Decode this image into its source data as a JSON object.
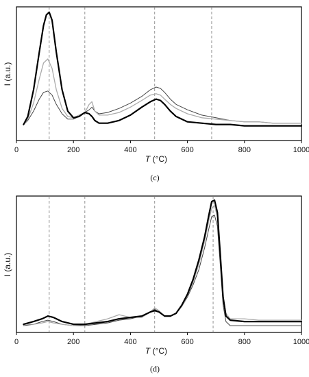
{
  "chart_data": [
    {
      "type": "line",
      "panel_label": "(c)",
      "xlabel_var": "T",
      "xlabel_unit": " (°C)",
      "ylabel": "I (a.u.)",
      "xlim": [
        0,
        1000
      ],
      "ylim": [
        0,
        1
      ],
      "xticks": [
        0,
        200,
        400,
        600,
        800,
        1000
      ],
      "tick_labels": [
        "0",
        "200",
        "400",
        "600",
        "800",
        "1000"
      ],
      "ref_lines": [
        115,
        240,
        485,
        685
      ],
      "series": [
        {
          "color": "#444444",
          "width": 1.0,
          "x": [
            25,
            40,
            60,
            80,
            95,
            110,
            125,
            140,
            160,
            180,
            200,
            220,
            240,
            255,
            265,
            275,
            290,
            320,
            360,
            400,
            440,
            470,
            490,
            505,
            520,
            540,
            560,
            600,
            650,
            700,
            750,
            800,
            850,
            900,
            950,
            1000
          ],
          "y": [
            0.12,
            0.15,
            0.22,
            0.31,
            0.36,
            0.37,
            0.34,
            0.27,
            0.2,
            0.16,
            0.16,
            0.18,
            0.21,
            0.23,
            0.25,
            0.22,
            0.2,
            0.21,
            0.24,
            0.28,
            0.33,
            0.38,
            0.4,
            0.39,
            0.36,
            0.31,
            0.27,
            0.23,
            0.19,
            0.17,
            0.15,
            0.14,
            0.14,
            0.13,
            0.13,
            0.13
          ]
        },
        {
          "color": "#aaaaaa",
          "width": 1.3,
          "x": [
            25,
            40,
            60,
            80,
            95,
            110,
            125,
            140,
            160,
            180,
            200,
            220,
            240,
            255,
            265,
            275,
            290,
            320,
            360,
            400,
            440,
            470,
            490,
            505,
            520,
            540,
            560,
            600,
            650,
            700,
            750,
            800,
            850,
            900,
            950,
            1000
          ],
          "y": [
            0.12,
            0.16,
            0.28,
            0.46,
            0.58,
            0.61,
            0.54,
            0.38,
            0.24,
            0.18,
            0.17,
            0.19,
            0.21,
            0.27,
            0.29,
            0.22,
            0.19,
            0.19,
            0.21,
            0.25,
            0.3,
            0.34,
            0.35,
            0.34,
            0.31,
            0.27,
            0.24,
            0.2,
            0.17,
            0.16,
            0.15,
            0.14,
            0.14,
            0.13,
            0.13,
            0.13
          ]
        },
        {
          "color": "#000000",
          "width": 2.2,
          "x": [
            25,
            40,
            60,
            80,
            95,
            105,
            115,
            125,
            140,
            160,
            180,
            200,
            220,
            240,
            255,
            265,
            275,
            290,
            320,
            360,
            400,
            440,
            470,
            490,
            505,
            520,
            540,
            560,
            600,
            650,
            700,
            750,
            800,
            850,
            900,
            950,
            1000
          ],
          "y": [
            0.12,
            0.18,
            0.38,
            0.66,
            0.86,
            0.94,
            0.96,
            0.9,
            0.66,
            0.38,
            0.22,
            0.17,
            0.18,
            0.21,
            0.2,
            0.18,
            0.15,
            0.13,
            0.13,
            0.15,
            0.19,
            0.25,
            0.29,
            0.31,
            0.3,
            0.27,
            0.22,
            0.18,
            0.14,
            0.13,
            0.12,
            0.12,
            0.11,
            0.11,
            0.11,
            0.11,
            0.11
          ]
        }
      ]
    },
    {
      "type": "line",
      "panel_label": "(d)",
      "xlabel_var": "T",
      "xlabel_unit": " (°C)",
      "ylabel": "I (a.u.)",
      "xlim": [
        0,
        1000
      ],
      "ylim": [
        0,
        1
      ],
      "xticks": [
        0,
        200,
        400,
        600,
        800,
        1000
      ],
      "tick_labels": [
        "0",
        "200",
        "400",
        "600",
        "800",
        "1000"
      ],
      "ref_lines": [
        115,
        240,
        485,
        690
      ],
      "series": [
        {
          "color": "#444444",
          "width": 1.0,
          "x": [
            25,
            60,
            90,
            110,
            130,
            160,
            200,
            240,
            280,
            320,
            360,
            400,
            440,
            470,
            485,
            500,
            520,
            540,
            560,
            580,
            600,
            620,
            640,
            660,
            675,
            685,
            695,
            705,
            715,
            725,
            735,
            750,
            800,
            850,
            900,
            950,
            1000
          ],
          "y": [
            0.05,
            0.06,
            0.08,
            0.09,
            0.08,
            0.06,
            0.05,
            0.05,
            0.06,
            0.07,
            0.09,
            0.1,
            0.12,
            0.15,
            0.17,
            0.15,
            0.12,
            0.12,
            0.14,
            0.19,
            0.26,
            0.35,
            0.46,
            0.62,
            0.76,
            0.85,
            0.86,
            0.78,
            0.5,
            0.2,
            0.08,
            0.05,
            0.05,
            0.05,
            0.05,
            0.05,
            0.05
          ]
        },
        {
          "color": "#aaaaaa",
          "width": 1.3,
          "x": [
            25,
            60,
            90,
            110,
            130,
            160,
            200,
            240,
            280,
            320,
            360,
            400,
            440,
            470,
            485,
            500,
            520,
            540,
            560,
            580,
            600,
            620,
            640,
            660,
            675,
            685,
            695,
            705,
            715,
            725,
            735,
            750,
            800,
            850,
            900,
            950,
            1000
          ],
          "y": [
            0.06,
            0.06,
            0.07,
            0.08,
            0.07,
            0.06,
            0.05,
            0.06,
            0.08,
            0.1,
            0.13,
            0.11,
            0.11,
            0.15,
            0.18,
            0.16,
            0.12,
            0.12,
            0.14,
            0.19,
            0.27,
            0.37,
            0.5,
            0.67,
            0.82,
            0.91,
            0.93,
            0.85,
            0.56,
            0.26,
            0.14,
            0.1,
            0.1,
            0.09,
            0.09,
            0.09,
            0.09
          ]
        },
        {
          "color": "#000000",
          "width": 2.2,
          "x": [
            25,
            60,
            90,
            110,
            130,
            160,
            200,
            240,
            280,
            320,
            360,
            400,
            440,
            470,
            485,
            500,
            520,
            540,
            560,
            580,
            600,
            620,
            640,
            660,
            675,
            685,
            695,
            705,
            715,
            725,
            735,
            750,
            800,
            850,
            900,
            950,
            1000
          ],
          "y": [
            0.06,
            0.08,
            0.1,
            0.12,
            0.11,
            0.08,
            0.06,
            0.06,
            0.07,
            0.08,
            0.1,
            0.11,
            0.12,
            0.15,
            0.16,
            0.15,
            0.12,
            0.12,
            0.14,
            0.2,
            0.28,
            0.39,
            0.53,
            0.7,
            0.86,
            0.96,
            0.97,
            0.88,
            0.58,
            0.26,
            0.12,
            0.09,
            0.08,
            0.08,
            0.08,
            0.08,
            0.08
          ]
        }
      ]
    }
  ]
}
